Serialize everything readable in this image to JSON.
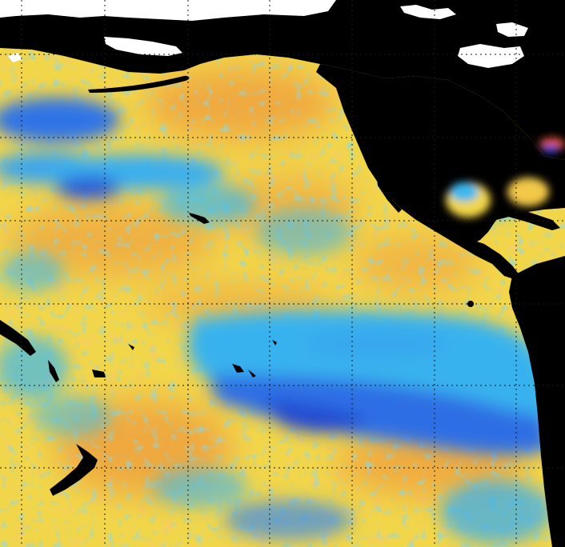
{
  "map": {
    "projection": "equirectangular",
    "colors": {
      "land": "#000000",
      "ice": "#ffffff",
      "warm_anomaly": "#f2b64a",
      "neutral": "#f2e24a",
      "cool_anomaly": "#3ab8ee",
      "cold_anomaly": "#2a5be0",
      "hot_anomaly": "#e8532a",
      "grid": "#222222"
    }
  }
}
